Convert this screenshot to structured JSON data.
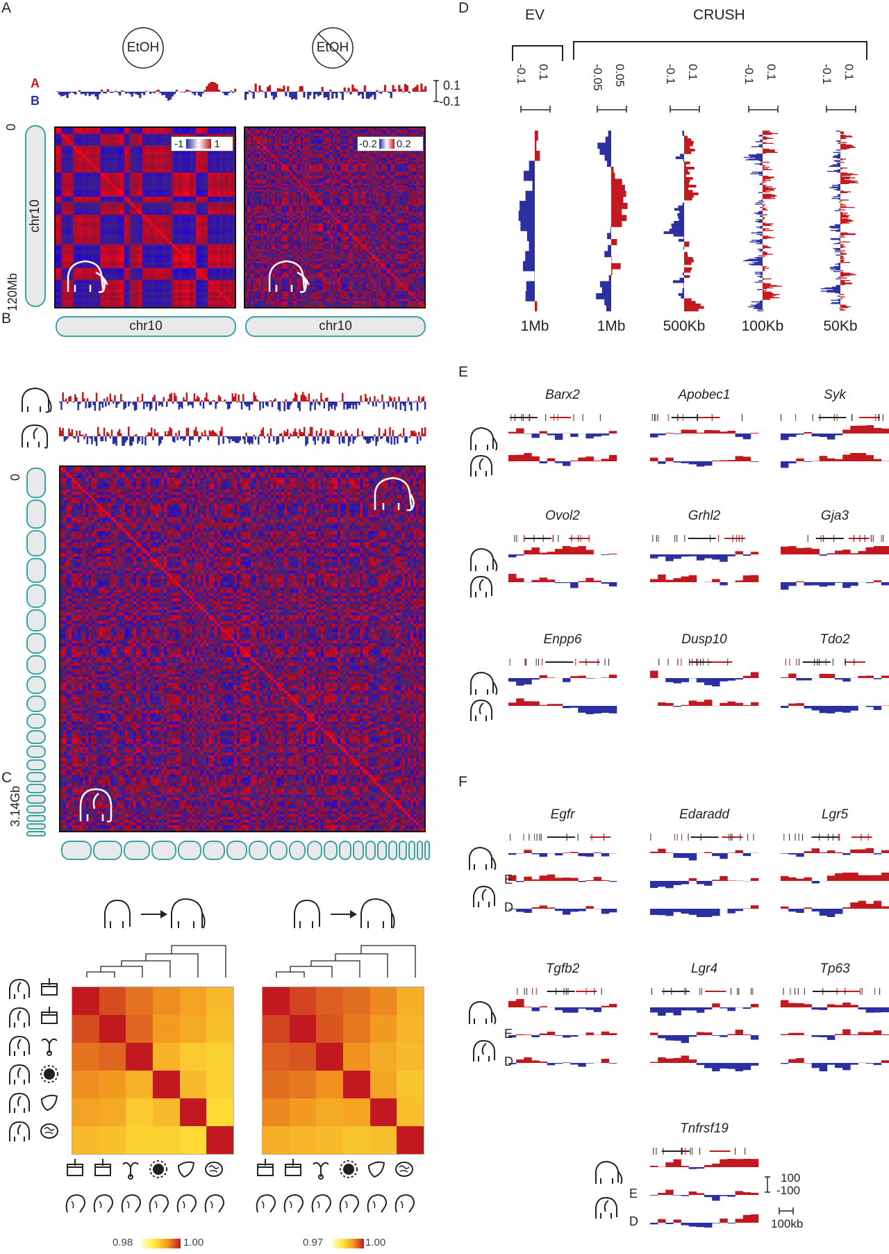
{
  "panels": {
    "a": "A",
    "b": "B",
    "c": "C",
    "d": "D",
    "e": "E",
    "f": "F"
  },
  "colors": {
    "red": "#c1191f",
    "blue": "#2b2fa0",
    "teal": "#36a3a3",
    "yellow": "#ffea3a",
    "orange": "#f39a20"
  },
  "panel_a": {
    "condition_left": "EtOH",
    "condition_right": "EtOH",
    "track_a": "A",
    "track_b": "B",
    "scale_top": "0.1",
    "scale_bottom": "-0.1",
    "y_top": "0",
    "y_bottom": "120Mb",
    "chrom_label_y": "chr10",
    "chrom_label_x_left": "chr10",
    "chrom_label_x_right": "chr10",
    "legend_left_min": "-1",
    "legend_left_max": "1",
    "legend_right_min": "-0.2",
    "legend_right_max": "0.2",
    "icon": "mammoth-icon"
  },
  "panel_b": {
    "y_top": "0",
    "y_bottom": "3.14Gb",
    "icons": [
      "mammoth-icon",
      "elephant-icon"
    ]
  },
  "panel_c": {
    "left_scale_min": "0.98",
    "left_scale_max": "1.00",
    "right_scale_min": "0.97",
    "right_scale_max": "1.00",
    "tissues": [
      "skin-icon",
      "skin-icon",
      "reproductive-icon",
      "gland-icon",
      "liver-icon",
      "brain-icon"
    ],
    "left_matrix": [
      [
        1.0,
        0.996,
        0.993,
        0.991,
        0.989,
        0.986
      ],
      [
        0.996,
        1.0,
        0.994,
        0.99,
        0.988,
        0.985
      ],
      [
        0.993,
        0.994,
        1.0,
        0.987,
        0.984,
        0.983
      ],
      [
        0.991,
        0.99,
        0.987,
        1.0,
        0.986,
        0.983
      ],
      [
        0.989,
        0.988,
        0.984,
        0.986,
        1.0,
        0.982
      ],
      [
        0.986,
        0.985,
        0.983,
        0.983,
        0.982,
        1.0
      ]
    ],
    "right_matrix": [
      [
        1.0,
        0.995,
        0.992,
        0.99,
        0.987,
        0.981
      ],
      [
        0.995,
        1.0,
        0.993,
        0.989,
        0.985,
        0.98
      ],
      [
        0.992,
        0.993,
        1.0,
        0.986,
        0.982,
        0.979
      ],
      [
        0.99,
        0.989,
        0.986,
        1.0,
        0.983,
        0.977
      ],
      [
        0.987,
        0.985,
        0.982,
        0.983,
        1.0,
        0.978
      ],
      [
        0.981,
        0.98,
        0.979,
        0.977,
        0.978,
        1.0
      ]
    ]
  },
  "panel_d": {
    "group_ev": "EV",
    "group_crush": "CRUSH",
    "columns": [
      {
        "neg": "-0.1",
        "pos": "0.1",
        "res": "1Mb"
      },
      {
        "neg": "-0.05",
        "pos": "0.05",
        "res": "1Mb"
      },
      {
        "neg": "-0.1",
        "pos": "0.1",
        "res": "500Kb"
      },
      {
        "neg": "-0.1",
        "pos": "0.1",
        "res": "100Kb"
      },
      {
        "neg": "-0.1",
        "pos": "0.1",
        "res": "50Kb"
      }
    ]
  },
  "panel_e": {
    "genes": [
      "Barx2",
      "Apobec1",
      "Syk",
      "Ovol2",
      "Grhl2",
      "Gja3",
      "Enpp6",
      "Dusp10",
      "Tdo2"
    ]
  },
  "panel_f": {
    "genes": [
      "Egfr",
      "Edaradd",
      "Lgr5",
      "Tgfb2",
      "Lgr4",
      "Tp63",
      "Tnfrsf19"
    ],
    "row_e": "E",
    "row_d": "D",
    "scale_top": "100",
    "scale_bottom": "-100",
    "scale_length": "100kb"
  }
}
